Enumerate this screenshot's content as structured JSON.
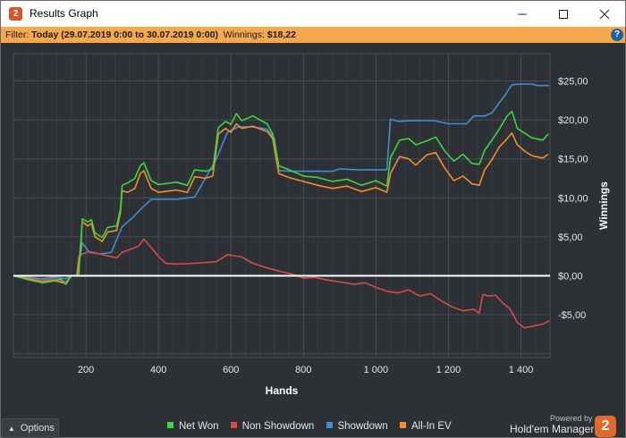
{
  "window": {
    "title": "Results Graph",
    "icon": "hm2-logo-icon",
    "controls": [
      "minimize-icon",
      "maximize-icon",
      "close-icon"
    ]
  },
  "filter": {
    "prefix": "Filter: ",
    "range": "Today (29.07.2019 0:00 to 30.07.2019 0:00)",
    "winnings_label": "  Winnings: ",
    "winnings_value": "$18,22",
    "help": "?"
  },
  "options": {
    "label": "Options",
    "icon": "caret-up-icon"
  },
  "branding": {
    "powered": "Powered by",
    "name": "Hold'em Manager",
    "badge": "2"
  },
  "colors": {
    "net_won": "#3ed53e",
    "non_showdown": "#d94a48",
    "showdown": "#3d8fd6",
    "all_in_ev": "#ef8f2f",
    "zero_line": "#ffffff",
    "filter_bar": "#f5a94c"
  },
  "chart_data": {
    "type": "line",
    "xlabel": "Hands",
    "ylabel": "Winnings",
    "xlim": [
      0,
      1480
    ],
    "ylim": [
      -10.5,
      28.5
    ],
    "x_ticks": [
      200,
      400,
      600,
      800,
      1000,
      1200,
      1400
    ],
    "x_tick_labels": [
      "200",
      "400",
      "600",
      "800",
      "1 000",
      "1 200",
      "1 400"
    ],
    "y_ticks": [
      -5,
      0,
      5,
      10,
      15,
      20,
      25
    ],
    "y_tick_labels": [
      "-$5,00",
      "$0,00",
      "$5,00",
      "$10,00",
      "$15,00",
      "$20,00",
      "$25,00"
    ],
    "grid": true,
    "legend_position": "bottom",
    "series": [
      {
        "name": "Net Won",
        "color": "#3ed53e",
        "points": [
          [
            0,
            0
          ],
          [
            40,
            -0.5
          ],
          [
            80,
            -0.9
          ],
          [
            110,
            -0.7
          ],
          [
            130,
            -0.4
          ],
          [
            145,
            -1.1
          ],
          [
            160,
            0
          ],
          [
            170,
            0
          ],
          [
            180,
            0
          ],
          [
            183,
            2.2
          ],
          [
            186,
            3.5
          ],
          [
            190,
            7.3
          ],
          [
            205,
            6.9
          ],
          [
            215,
            7.2
          ],
          [
            225,
            5.5
          ],
          [
            245,
            4.9
          ],
          [
            260,
            6.2
          ],
          [
            285,
            6.4
          ],
          [
            295,
            8.5
          ],
          [
            300,
            11.6
          ],
          [
            315,
            11.9
          ],
          [
            335,
            12.5
          ],
          [
            350,
            14.1
          ],
          [
            360,
            14.5
          ],
          [
            380,
            12.2
          ],
          [
            400,
            11.7
          ],
          [
            450,
            12.0
          ],
          [
            480,
            11.6
          ],
          [
            500,
            13.6
          ],
          [
            530,
            13.4
          ],
          [
            550,
            13.7
          ],
          [
            565,
            19.0
          ],
          [
            585,
            19.8
          ],
          [
            600,
            19.4
          ],
          [
            615,
            20.8
          ],
          [
            630,
            19.9
          ],
          [
            660,
            20.5
          ],
          [
            700,
            19.5
          ],
          [
            715,
            18.2
          ],
          [
            732,
            14.1
          ],
          [
            760,
            13.6
          ],
          [
            800,
            12.8
          ],
          [
            840,
            12.6
          ],
          [
            880,
            12.1
          ],
          [
            920,
            12.4
          ],
          [
            960,
            11.6
          ],
          [
            1000,
            12.2
          ],
          [
            1030,
            11.5
          ],
          [
            1040,
            15.1
          ],
          [
            1065,
            17.4
          ],
          [
            1090,
            17.6
          ],
          [
            1110,
            16.8
          ],
          [
            1140,
            17.3
          ],
          [
            1165,
            17.8
          ],
          [
            1190,
            16.0
          ],
          [
            1215,
            14.7
          ],
          [
            1240,
            15.6
          ],
          [
            1265,
            14.4
          ],
          [
            1285,
            14.3
          ],
          [
            1300,
            16.1
          ],
          [
            1320,
            17.4
          ],
          [
            1340,
            18.8
          ],
          [
            1360,
            20.4
          ],
          [
            1375,
            21.1
          ],
          [
            1390,
            18.9
          ],
          [
            1410,
            18.3
          ],
          [
            1430,
            17.7
          ],
          [
            1460,
            17.4
          ],
          [
            1475,
            18.2
          ]
        ]
      },
      {
        "name": "Non Showdown",
        "color": "#d94a48",
        "points": [
          [
            0,
            0
          ],
          [
            40,
            -0.3
          ],
          [
            80,
            -0.6
          ],
          [
            110,
            -0.4
          ],
          [
            145,
            -0.8
          ],
          [
            160,
            0
          ],
          [
            175,
            0
          ],
          [
            180,
            2.4
          ],
          [
            190,
            2.8
          ],
          [
            210,
            3.1
          ],
          [
            230,
            2.9
          ],
          [
            255,
            2.6
          ],
          [
            285,
            2.3
          ],
          [
            300,
            3.0
          ],
          [
            330,
            3.5
          ],
          [
            345,
            3.8
          ],
          [
            360,
            4.7
          ],
          [
            380,
            3.6
          ],
          [
            400,
            2.5
          ],
          [
            420,
            1.6
          ],
          [
            450,
            1.5
          ],
          [
            500,
            1.6
          ],
          [
            560,
            1.8
          ],
          [
            590,
            2.7
          ],
          [
            630,
            2.4
          ],
          [
            660,
            1.6
          ],
          [
            700,
            1.0
          ],
          [
            740,
            0.5
          ],
          [
            770,
            0.2
          ],
          [
            800,
            -0.3
          ],
          [
            830,
            -0.2
          ],
          [
            860,
            -0.5
          ],
          [
            900,
            -0.8
          ],
          [
            940,
            -1.1
          ],
          [
            970,
            -0.9
          ],
          [
            1000,
            -1.5
          ],
          [
            1030,
            -2.0
          ],
          [
            1060,
            -2.2
          ],
          [
            1090,
            -1.8
          ],
          [
            1120,
            -2.6
          ],
          [
            1150,
            -2.3
          ],
          [
            1180,
            -3.2
          ],
          [
            1210,
            -4.0
          ],
          [
            1240,
            -4.5
          ],
          [
            1270,
            -4.3
          ],
          [
            1285,
            -4.8
          ],
          [
            1295,
            -2.4
          ],
          [
            1310,
            -2.6
          ],
          [
            1330,
            -2.5
          ],
          [
            1350,
            -3.5
          ],
          [
            1370,
            -4.3
          ],
          [
            1390,
            -6.0
          ],
          [
            1410,
            -6.7
          ],
          [
            1440,
            -6.4
          ],
          [
            1460,
            -6.2
          ],
          [
            1478,
            -5.8
          ]
        ]
      },
      {
        "name": "Showdown",
        "color": "#3d8fd6",
        "points": [
          [
            0,
            0
          ],
          [
            40,
            -0.2
          ],
          [
            80,
            -0.4
          ],
          [
            110,
            -0.2
          ],
          [
            145,
            -0.4
          ],
          [
            160,
            0
          ],
          [
            175,
            0
          ],
          [
            182,
            2.0
          ],
          [
            190,
            4.2
          ],
          [
            210,
            3.0
          ],
          [
            240,
            2.8
          ],
          [
            270,
            3.0
          ],
          [
            300,
            6.3
          ],
          [
            330,
            7.5
          ],
          [
            350,
            8.5
          ],
          [
            380,
            9.8
          ],
          [
            450,
            9.8
          ],
          [
            500,
            10.1
          ],
          [
            560,
            15.0
          ],
          [
            590,
            18.4
          ],
          [
            620,
            19.1
          ],
          [
            660,
            19.1
          ],
          [
            700,
            18.8
          ],
          [
            720,
            17.6
          ],
          [
            732,
            13.5
          ],
          [
            760,
            13.4
          ],
          [
            800,
            13.4
          ],
          [
            850,
            13.4
          ],
          [
            880,
            13.4
          ],
          [
            900,
            13.7
          ],
          [
            950,
            13.6
          ],
          [
            1000,
            13.6
          ],
          [
            1030,
            13.6
          ],
          [
            1040,
            20.1
          ],
          [
            1060,
            19.8
          ],
          [
            1100,
            19.9
          ],
          [
            1160,
            19.9
          ],
          [
            1200,
            19.5
          ],
          [
            1250,
            19.5
          ],
          [
            1270,
            20.5
          ],
          [
            1300,
            20.5
          ],
          [
            1320,
            20.9
          ],
          [
            1340,
            22.2
          ],
          [
            1355,
            23.1
          ],
          [
            1375,
            24.5
          ],
          [
            1400,
            24.6
          ],
          [
            1430,
            24.6
          ],
          [
            1445,
            24.4
          ],
          [
            1478,
            24.4
          ]
        ]
      },
      {
        "name": "All-In EV",
        "color": "#ef8f2f",
        "points": [
          [
            0,
            0
          ],
          [
            40,
            -0.4
          ],
          [
            80,
            -0.8
          ],
          [
            110,
            -0.6
          ],
          [
            145,
            -1.0
          ],
          [
            160,
            0
          ],
          [
            175,
            0
          ],
          [
            182,
            2.0
          ],
          [
            190,
            6.9
          ],
          [
            205,
            6.4
          ],
          [
            215,
            6.7
          ],
          [
            225,
            5.0
          ],
          [
            245,
            4.4
          ],
          [
            260,
            5.6
          ],
          [
            285,
            5.8
          ],
          [
            295,
            8.1
          ],
          [
            300,
            10.9
          ],
          [
            315,
            10.7
          ],
          [
            335,
            11.2
          ],
          [
            350,
            13.1
          ],
          [
            360,
            13.5
          ],
          [
            380,
            11.2
          ],
          [
            400,
            10.7
          ],
          [
            450,
            11.0
          ],
          [
            480,
            10.7
          ],
          [
            500,
            12.7
          ],
          [
            530,
            12.5
          ],
          [
            550,
            12.8
          ],
          [
            565,
            18.2
          ],
          [
            585,
            18.9
          ],
          [
            600,
            18.4
          ],
          [
            615,
            19.5
          ],
          [
            630,
            18.9
          ],
          [
            660,
            19.2
          ],
          [
            700,
            18.5
          ],
          [
            715,
            17.6
          ],
          [
            732,
            13.1
          ],
          [
            760,
            12.6
          ],
          [
            800,
            12.1
          ],
          [
            840,
            11.6
          ],
          [
            880,
            11.2
          ],
          [
            920,
            11.5
          ],
          [
            960,
            10.8
          ],
          [
            1000,
            11.3
          ],
          [
            1030,
            10.7
          ],
          [
            1040,
            13.1
          ],
          [
            1065,
            15.3
          ],
          [
            1090,
            15.0
          ],
          [
            1110,
            14.2
          ],
          [
            1140,
            15.5
          ],
          [
            1165,
            15.8
          ],
          [
            1190,
            13.8
          ],
          [
            1215,
            12.2
          ],
          [
            1240,
            12.8
          ],
          [
            1265,
            11.8
          ],
          [
            1285,
            11.6
          ],
          [
            1300,
            13.6
          ],
          [
            1320,
            14.9
          ],
          [
            1340,
            16.5
          ],
          [
            1360,
            17.5
          ],
          [
            1375,
            18.3
          ],
          [
            1390,
            16.8
          ],
          [
            1410,
            16.0
          ],
          [
            1430,
            15.4
          ],
          [
            1460,
            15.1
          ],
          [
            1475,
            15.6
          ]
        ]
      }
    ]
  }
}
